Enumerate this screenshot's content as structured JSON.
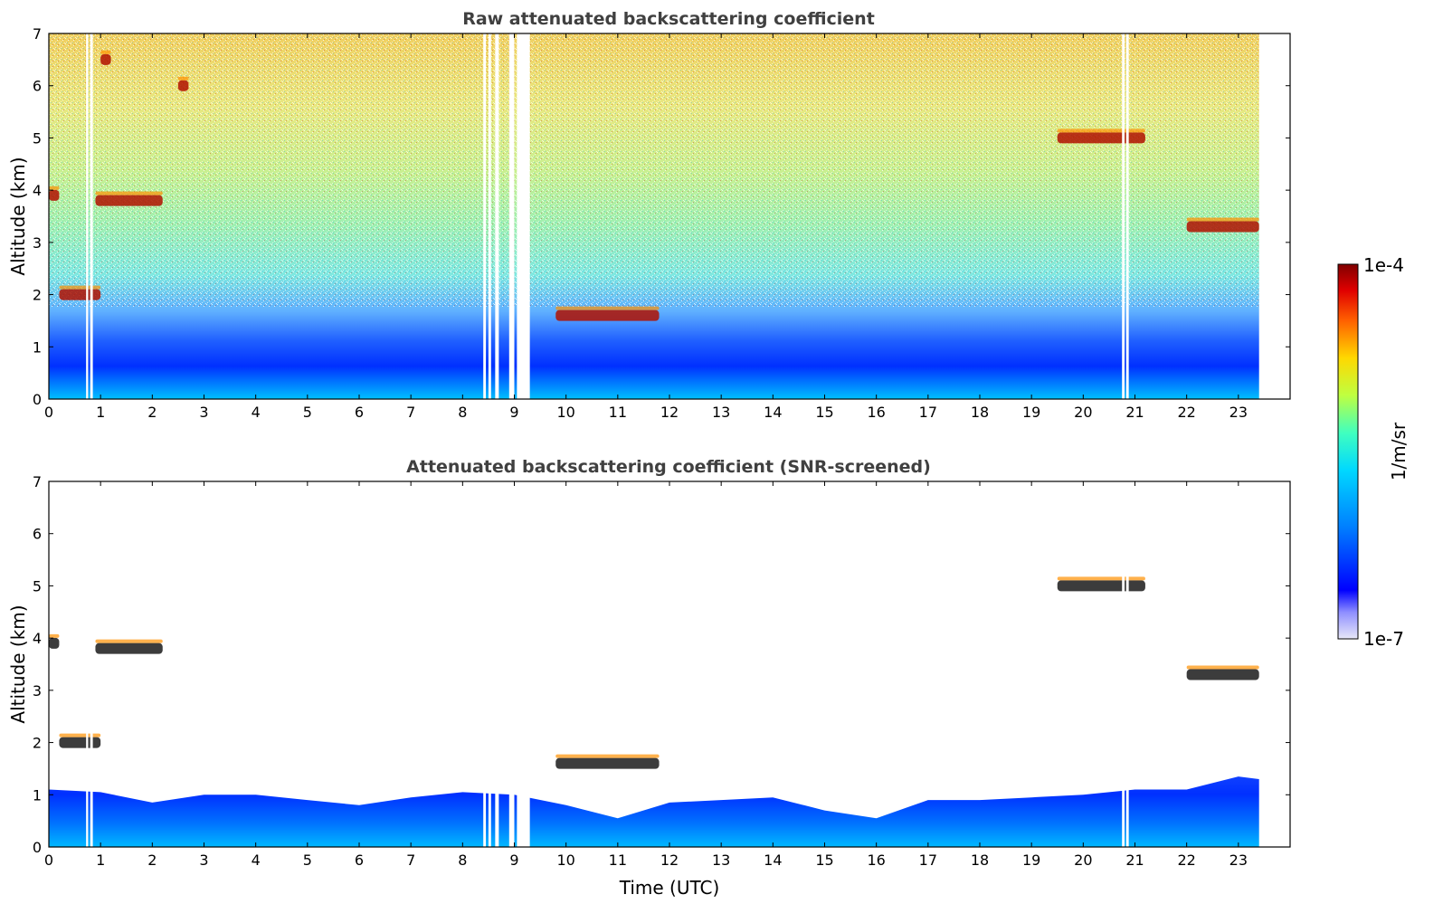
{
  "chart_data": [
    {
      "type": "heatmap",
      "title": "Raw attenuated backscattering coefficient",
      "xlabel": "",
      "ylabel": "Altitude (km)",
      "xlim": [
        0,
        24
      ],
      "ylim": [
        0,
        7
      ],
      "xticks": [
        "0",
        "1",
        "2",
        "3",
        "4",
        "5",
        "6",
        "7",
        "8",
        "9",
        "10",
        "11",
        "12",
        "13",
        "14",
        "15",
        "16",
        "17",
        "18",
        "19",
        "20",
        "21",
        "22",
        "23"
      ],
      "yticks": [
        "0",
        "1",
        "2",
        "3",
        "4",
        "5",
        "6",
        "7"
      ],
      "data_end_x": 23.4,
      "data_gaps_x": [
        [
          0.72,
          0.76
        ],
        [
          0.8,
          0.85
        ],
        [
          8.4,
          8.45
        ],
        [
          8.5,
          8.55
        ],
        [
          8.63,
          8.7
        ],
        [
          8.9,
          9.0
        ],
        [
          9.05,
          9.3
        ],
        [
          20.75,
          20.8
        ],
        [
          20.83,
          20.88
        ]
      ],
      "layers": [
        {
          "kind": "near-surface aerosol",
          "x_range": [
            0,
            23.4
          ],
          "y_top_km": 1.0
        },
        {
          "kind": "cloud",
          "x_range": [
            0.0,
            0.2
          ],
          "altitude_km": 3.9
        },
        {
          "kind": "cloud",
          "x_range": [
            0.9,
            2.2
          ],
          "altitude_km": 3.8
        },
        {
          "kind": "cloud",
          "x_range": [
            0.2,
            1.0
          ],
          "altitude_km": 2.0
        },
        {
          "kind": "cloud",
          "x_range": [
            1.0,
            1.2
          ],
          "altitude_km": 6.5
        },
        {
          "kind": "cloud",
          "x_range": [
            2.5,
            2.7
          ],
          "altitude_km": 6.0
        },
        {
          "kind": "cloud",
          "x_range": [
            9.8,
            11.8
          ],
          "altitude_km": 1.6
        },
        {
          "kind": "cloud",
          "x_range": [
            19.5,
            21.2
          ],
          "altitude_km": 5.0
        },
        {
          "kind": "cloud",
          "x_range": [
            22.0,
            23.4
          ],
          "altitude_km": 3.3
        }
      ]
    },
    {
      "type": "heatmap",
      "title": "Attenuated backscattering coefficient (SNR-screened)",
      "xlabel": "Time (UTC)",
      "ylabel": "Altitude (km)",
      "xlim": [
        0,
        24
      ],
      "ylim": [
        0,
        7
      ],
      "xticks": [
        "0",
        "1",
        "2",
        "3",
        "4",
        "5",
        "6",
        "7",
        "8",
        "9",
        "10",
        "11",
        "12",
        "13",
        "14",
        "15",
        "16",
        "17",
        "18",
        "19",
        "20",
        "21",
        "22",
        "23"
      ],
      "yticks": [
        "0",
        "1",
        "2",
        "3",
        "4",
        "5",
        "6",
        "7"
      ],
      "data_end_x": 23.4,
      "data_gaps_x": [
        [
          0.72,
          0.76
        ],
        [
          0.8,
          0.85
        ],
        [
          8.4,
          8.45
        ],
        [
          8.5,
          8.55
        ],
        [
          8.63,
          8.7
        ],
        [
          8.9,
          9.0
        ],
        [
          9.05,
          9.3
        ],
        [
          20.75,
          20.8
        ],
        [
          20.83,
          20.88
        ]
      ],
      "boundary_layer_top_km": [
        [
          0,
          1.1
        ],
        [
          1,
          1.05
        ],
        [
          2,
          0.85
        ],
        [
          3,
          1.0
        ],
        [
          4,
          1.0
        ],
        [
          5,
          0.9
        ],
        [
          6,
          0.8
        ],
        [
          7,
          0.95
        ],
        [
          8,
          1.05
        ],
        [
          9,
          1.0
        ],
        [
          10,
          0.8
        ],
        [
          11,
          0.55
        ],
        [
          12,
          0.85
        ],
        [
          13,
          0.9
        ],
        [
          14,
          0.95
        ],
        [
          15,
          0.7
        ],
        [
          16,
          0.55
        ],
        [
          17,
          0.9
        ],
        [
          18,
          0.9
        ],
        [
          19,
          0.95
        ],
        [
          20,
          1.0
        ],
        [
          21,
          1.1
        ],
        [
          22,
          1.1
        ],
        [
          23,
          1.35
        ],
        [
          23.4,
          1.3
        ]
      ],
      "layers": [
        {
          "kind": "cloud",
          "x_range": [
            0.0,
            0.2
          ],
          "altitude_km": 3.9
        },
        {
          "kind": "cloud",
          "x_range": [
            0.9,
            2.2
          ],
          "altitude_km": 3.8
        },
        {
          "kind": "cloud",
          "x_range": [
            0.2,
            1.0
          ],
          "altitude_km": 2.0
        },
        {
          "kind": "cloud",
          "x_range": [
            9.8,
            11.8
          ],
          "altitude_km": 1.6
        },
        {
          "kind": "cloud",
          "x_range": [
            19.5,
            21.2
          ],
          "altitude_km": 5.0
        },
        {
          "kind": "cloud",
          "x_range": [
            22.0,
            23.4
          ],
          "altitude_km": 3.3
        }
      ]
    }
  ],
  "colorbar": {
    "max_label": "1e-4",
    "min_label": "1e-7",
    "unit_label": "1/m/sr",
    "colormap": "jet",
    "colors": [
      "#e8e8f8",
      "#0000ff",
      "#0080ff",
      "#00d8ff",
      "#40ffbf",
      "#bfff40",
      "#ffd800",
      "#ff6000",
      "#e00000",
      "#800000"
    ]
  }
}
